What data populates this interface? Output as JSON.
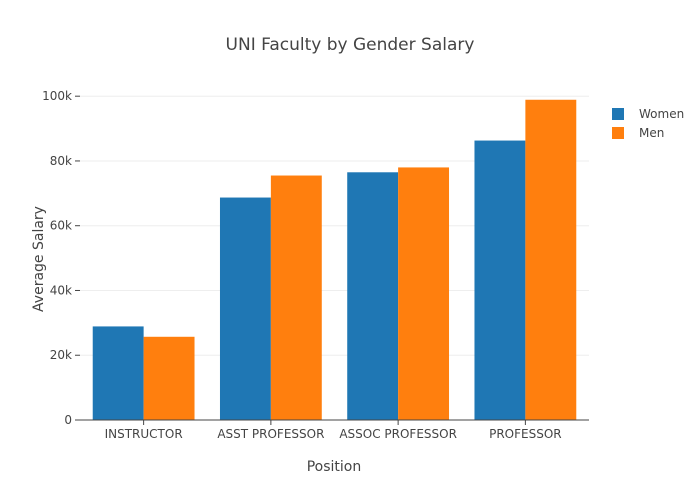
{
  "chart_data": {
    "type": "bar",
    "title": "UNI Faculty by Gender Salary",
    "xlabel": "Position",
    "ylabel": "Average Salary",
    "categories": [
      "INSTRUCTOR",
      "ASST PROFESSOR",
      "ASSOC PROFESSOR",
      "PROFESSOR"
    ],
    "series": [
      {
        "name": "Women",
        "values": [
          28900,
          68700,
          76500,
          86300
        ],
        "color": "#1f77b4"
      },
      {
        "name": "Men",
        "values": [
          25700,
          75500,
          78000,
          98900
        ],
        "color": "#ff7f0e"
      }
    ],
    "ylim": [
      0,
      105000
    ],
    "yticks": [
      0,
      20000,
      40000,
      60000,
      80000,
      100000
    ],
    "ytick_labels": [
      "0",
      "20k",
      "40k",
      "60k",
      "80k",
      "100k"
    ],
    "grid": true,
    "legend_position": "top-right"
  }
}
